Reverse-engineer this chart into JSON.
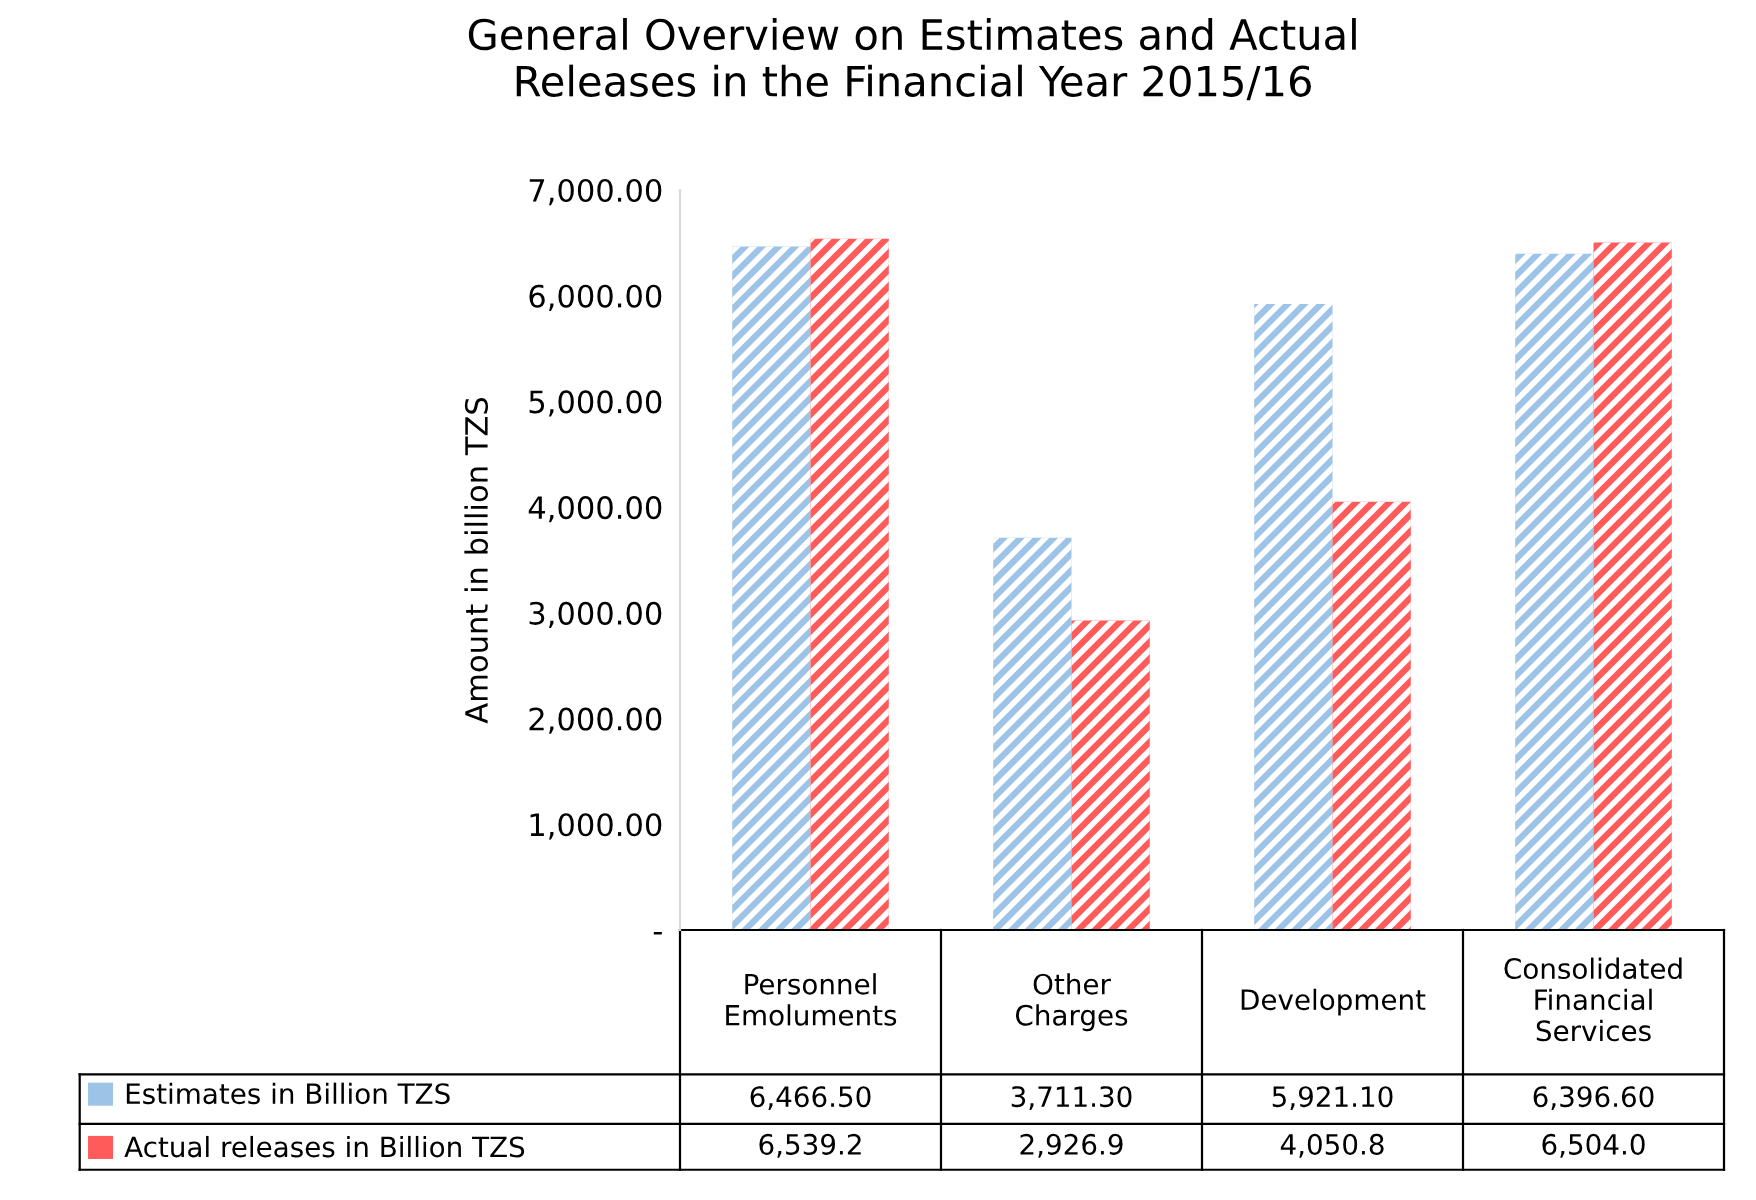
{
  "chart_data": {
    "type": "bar",
    "title": "General Overview on Estimates and Actual Releases in the Financial Year 2015/16",
    "ylabel": "Amount in billion TZS",
    "categories": [
      "Personnel Emoluments",
      "Other Charges",
      "Development",
      "Consolidated Financial Services"
    ],
    "series": [
      {
        "name": "Estimates in Billion TZS",
        "color": "#9dc3e6",
        "values": [
          6466.5,
          3711.3,
          5921.1,
          6396.6
        ],
        "value_labels": [
          "6,466.50",
          "3,711.30",
          "5,921.10",
          "6,396.60"
        ]
      },
      {
        "name": "Actual releases in Billion TZS",
        "color": "#ff5b5b",
        "values": [
          6539.2,
          2926.9,
          4050.8,
          6504.0
        ],
        "value_labels": [
          "6,539.2",
          "2,926.9",
          "4,050.8",
          "6,504.0"
        ]
      }
    ],
    "ylim": [
      0,
      7000
    ],
    "yticks": [
      {
        "value": 0,
        "label": "-"
      },
      {
        "value": 1000,
        "label": "1,000.00"
      },
      {
        "value": 2000,
        "label": "2,000.00"
      },
      {
        "value": 3000,
        "label": "3,000.00"
      },
      {
        "value": 4000,
        "label": "4,000.00"
      },
      {
        "value": 5000,
        "label": "5,000.00"
      },
      {
        "value": 6000,
        "label": "6,000.00"
      },
      {
        "value": 7000,
        "label": "7,000.00"
      }
    ],
    "grid": false,
    "legend": "bottom"
  }
}
